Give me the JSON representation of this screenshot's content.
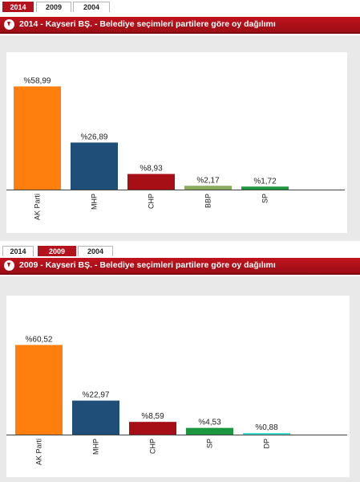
{
  "tabs": [
    "2014",
    "2009",
    "2004"
  ],
  "panels": [
    {
      "active_tab": "2014",
      "title": "2014 - Kayseri BŞ. - Belediye seçimleri partilere göre oy dağılımı"
    },
    {
      "active_tab": "2009",
      "title": "2009 - Kayseri BŞ. - Belediye seçimleri partilere göre oy dağılımı"
    }
  ],
  "chart_data": [
    {
      "type": "bar",
      "categories": [
        "AK Parti",
        "MHP",
        "CHP",
        "BBP",
        "SP"
      ],
      "values": [
        58.99,
        26.89,
        8.93,
        2.17,
        1.72
      ],
      "value_labels": [
        "%58,99",
        "%26,89",
        "%8,93",
        "%2,17",
        "%1,72"
      ],
      "colors": [
        "#ff7f0e",
        "#1f4e79",
        "#a50f15",
        "#8aaa5c",
        "#1c9740"
      ],
      "ylim": [
        0,
        62
      ],
      "grid": false,
      "legend": "none"
    },
    {
      "type": "bar",
      "categories": [
        "AK Parti",
        "MHP",
        "CHP",
        "SP",
        "DP"
      ],
      "values": [
        60.52,
        22.97,
        8.59,
        4.53,
        0.88
      ],
      "value_labels": [
        "%60,52",
        "%22,97",
        "%8,59",
        "%4,53",
        "%0,88"
      ],
      "colors": [
        "#ff7f0e",
        "#1f4e79",
        "#a50f15",
        "#1c9740",
        "#3fe0d0"
      ],
      "ylim": [
        0,
        64
      ],
      "grid": false,
      "legend": "none"
    }
  ]
}
